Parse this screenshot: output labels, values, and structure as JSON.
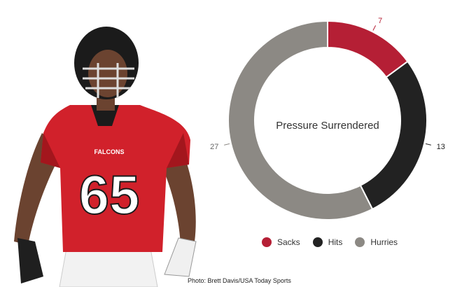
{
  "photo": {
    "jersey_number": "65",
    "jersey_brand": "FALCONS",
    "colors": {
      "jersey": "#d1212b",
      "jersey_dark": "#a3161d",
      "skin": "#6b4330",
      "helmet": "#1b1b1b",
      "pants": "#f2f2f2"
    }
  },
  "credit": "Photo: Brett Davis/USA Today Sports",
  "chart_data": {
    "type": "pie",
    "title": "Pressure Surrendered",
    "categories": [
      "Sacks",
      "Hits",
      "Hurries"
    ],
    "values": [
      7,
      13,
      27
    ],
    "colors": [
      "#b51f35",
      "#222222",
      "#8c8984"
    ],
    "legend_position": "bottom"
  }
}
